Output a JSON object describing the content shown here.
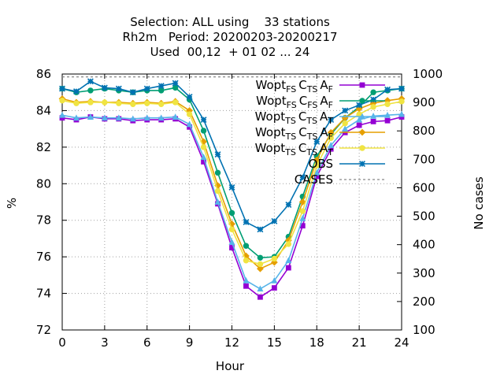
{
  "chart_data": {
    "type": "line",
    "title_lines": [
      "Selection: ALL using    33 stations",
      "Rh2m   Period: 20200203-20200217",
      "Used  00,12  + 01 02 ... 24"
    ],
    "xlabel": "Hour",
    "ylabel": "%",
    "y2label": "No cases",
    "xlim": [
      0,
      24
    ],
    "ylim": [
      72,
      86
    ],
    "y2lim": [
      100,
      1000
    ],
    "xticks": [
      0,
      3,
      6,
      9,
      12,
      15,
      18,
      21,
      24
    ],
    "yticks": [
      72,
      74,
      76,
      78,
      80,
      82,
      84,
      86
    ],
    "y2ticks": [
      100,
      200,
      300,
      400,
      500,
      600,
      700,
      800,
      900,
      1000
    ],
    "x": [
      0,
      1,
      2,
      3,
      4,
      5,
      6,
      7,
      8,
      9,
      10,
      11,
      12,
      13,
      14,
      15,
      16,
      17,
      18,
      19,
      20,
      21,
      22,
      23,
      24
    ],
    "legend_position": "top-right",
    "series": [
      {
        "name": "Wopt_FS C_TS A_F",
        "legend_parts": [
          [
            "Wopt",
            ""
          ],
          [
            "FS",
            "sub"
          ],
          [
            "C",
            ""
          ],
          [
            "TS",
            "sub"
          ],
          [
            "A",
            ""
          ],
          [
            "F",
            "sub"
          ]
        ],
        "color": "#9400d3",
        "marker": "square",
        "values": [
          83.6,
          83.5,
          83.65,
          83.55,
          83.55,
          83.45,
          83.5,
          83.5,
          83.55,
          83.1,
          81.2,
          78.9,
          76.5,
          74.4,
          73.8,
          74.3,
          75.4,
          77.7,
          80.4,
          81.9,
          82.8,
          83.2,
          83.4,
          83.45,
          83.65
        ]
      },
      {
        "name": "Wopt_FS C_FS A_F",
        "legend_parts": [
          [
            "Wopt",
            ""
          ],
          [
            "FS",
            "sub"
          ],
          [
            "C",
            ""
          ],
          [
            "FS",
            "sub"
          ],
          [
            "A",
            ""
          ],
          [
            "F",
            "sub"
          ]
        ],
        "color": "#009e73",
        "marker": "circle",
        "values": [
          85.2,
          85.0,
          85.1,
          85.2,
          85.1,
          85.0,
          85.1,
          85.1,
          85.25,
          84.6,
          82.9,
          80.6,
          78.4,
          76.6,
          75.95,
          76.0,
          77.1,
          79.3,
          81.5,
          82.7,
          83.6,
          84.2,
          85.0,
          85.1,
          85.2
        ]
      },
      {
        "name": "Wopt_TS C_TS A_T",
        "legend_parts": [
          [
            "Wopt",
            ""
          ],
          [
            "TS",
            "sub"
          ],
          [
            "C",
            ""
          ],
          [
            "TS",
            "sub"
          ],
          [
            "A",
            ""
          ],
          [
            "T",
            "sub"
          ]
        ],
        "color": "#56b4e9",
        "marker": "triangle",
        "values": [
          83.75,
          83.6,
          83.65,
          83.6,
          83.6,
          83.55,
          83.6,
          83.6,
          83.65,
          83.25,
          81.45,
          79.0,
          76.8,
          74.7,
          74.25,
          74.7,
          75.8,
          78.1,
          80.6,
          82.1,
          83.0,
          83.5,
          83.7,
          83.75,
          83.8
        ]
      },
      {
        "name": "Wopt_TS C_TS A_F",
        "legend_parts": [
          [
            "Wopt",
            ""
          ],
          [
            "TS",
            "sub"
          ],
          [
            "C",
            ""
          ],
          [
            "TS",
            "sub"
          ],
          [
            "A",
            ""
          ],
          [
            "F",
            "sub"
          ]
        ],
        "color": "#e69f00",
        "marker": "diamond",
        "values": [
          84.65,
          84.45,
          84.5,
          84.45,
          84.45,
          84.4,
          84.45,
          84.4,
          84.5,
          84.0,
          82.3,
          79.9,
          77.8,
          76.05,
          75.35,
          75.7,
          76.9,
          79.0,
          81.3,
          82.8,
          83.6,
          84.1,
          84.4,
          84.55,
          84.65
        ]
      },
      {
        "name": "Wopt_TS C_TS A_T",
        "legend_parts": [
          [
            "Wopt",
            ""
          ],
          [
            "TS",
            "sub"
          ],
          [
            "C",
            ""
          ],
          [
            "TS",
            "sub"
          ],
          [
            "A",
            ""
          ],
          [
            "T",
            "sub"
          ]
        ],
        "color": "#f0e442",
        "marker": "circle",
        "values": [
          84.55,
          84.4,
          84.45,
          84.45,
          84.4,
          84.35,
          84.4,
          84.35,
          84.45,
          83.8,
          82.0,
          79.6,
          77.5,
          75.8,
          75.6,
          75.9,
          76.7,
          78.5,
          81.0,
          82.5,
          83.3,
          83.8,
          84.2,
          84.35,
          84.5
        ]
      },
      {
        "name": "OBS",
        "legend_parts": [
          [
            "OBS",
            ""
          ]
        ],
        "color": "#0072b2",
        "marker": "star",
        "values": [
          85.2,
          85.05,
          85.6,
          85.25,
          85.2,
          85.0,
          85.2,
          85.35,
          85.5,
          84.75,
          83.5,
          81.6,
          79.8,
          77.9,
          77.5,
          77.95,
          78.85,
          80.35,
          82.3,
          83.5,
          84.0,
          84.3,
          84.6,
          85.15,
          85.2
        ]
      },
      {
        "name": "CASES",
        "legend_parts": [
          [
            "CASES",
            ""
          ]
        ],
        "color": "#888888",
        "marker": "none",
        "dashed": true,
        "axis": "y2",
        "values": [
          990,
          990,
          990,
          990,
          990,
          990,
          990,
          990,
          990,
          990,
          990,
          990,
          990,
          990,
          990,
          990,
          990,
          990,
          990,
          990,
          990,
          990,
          990,
          990,
          990
        ]
      }
    ]
  }
}
